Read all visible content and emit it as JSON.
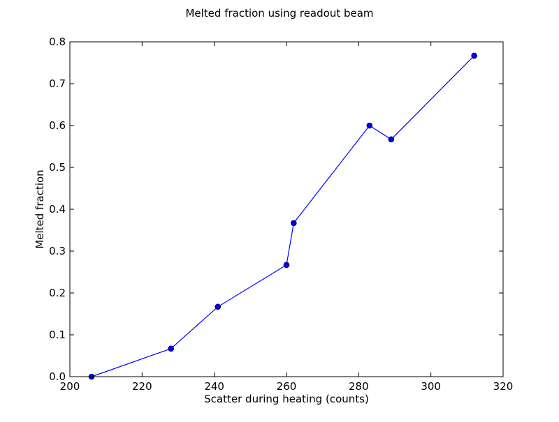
{
  "chart_data": {
    "type": "line",
    "title": "Melted fraction using readout beam",
    "xlabel": "Scatter during heating (counts)",
    "ylabel": "Melted fraction",
    "xlim": [
      200,
      320
    ],
    "ylim": [
      0.0,
      0.8
    ],
    "xticks": [
      200,
      220,
      240,
      260,
      280,
      300,
      320
    ],
    "yticks": [
      0.0,
      0.1,
      0.2,
      0.3,
      0.4,
      0.5,
      0.6,
      0.7,
      0.8
    ],
    "xtick_labels": [
      "200",
      "220",
      "240",
      "260",
      "280",
      "300",
      "320"
    ],
    "ytick_labels": [
      "0.0",
      "0.1",
      "0.2",
      "0.3",
      "0.4",
      "0.5",
      "0.6",
      "0.7",
      "0.8"
    ],
    "grid": false,
    "legend": "none",
    "series": [
      {
        "color": "#0000ff",
        "marker": "circle",
        "x": [
          206,
          228,
          241,
          260,
          262,
          283,
          289,
          312
        ],
        "y": [
          0.0,
          0.067,
          0.167,
          0.267,
          0.367,
          0.6,
          0.567,
          0.767
        ]
      }
    ]
  }
}
